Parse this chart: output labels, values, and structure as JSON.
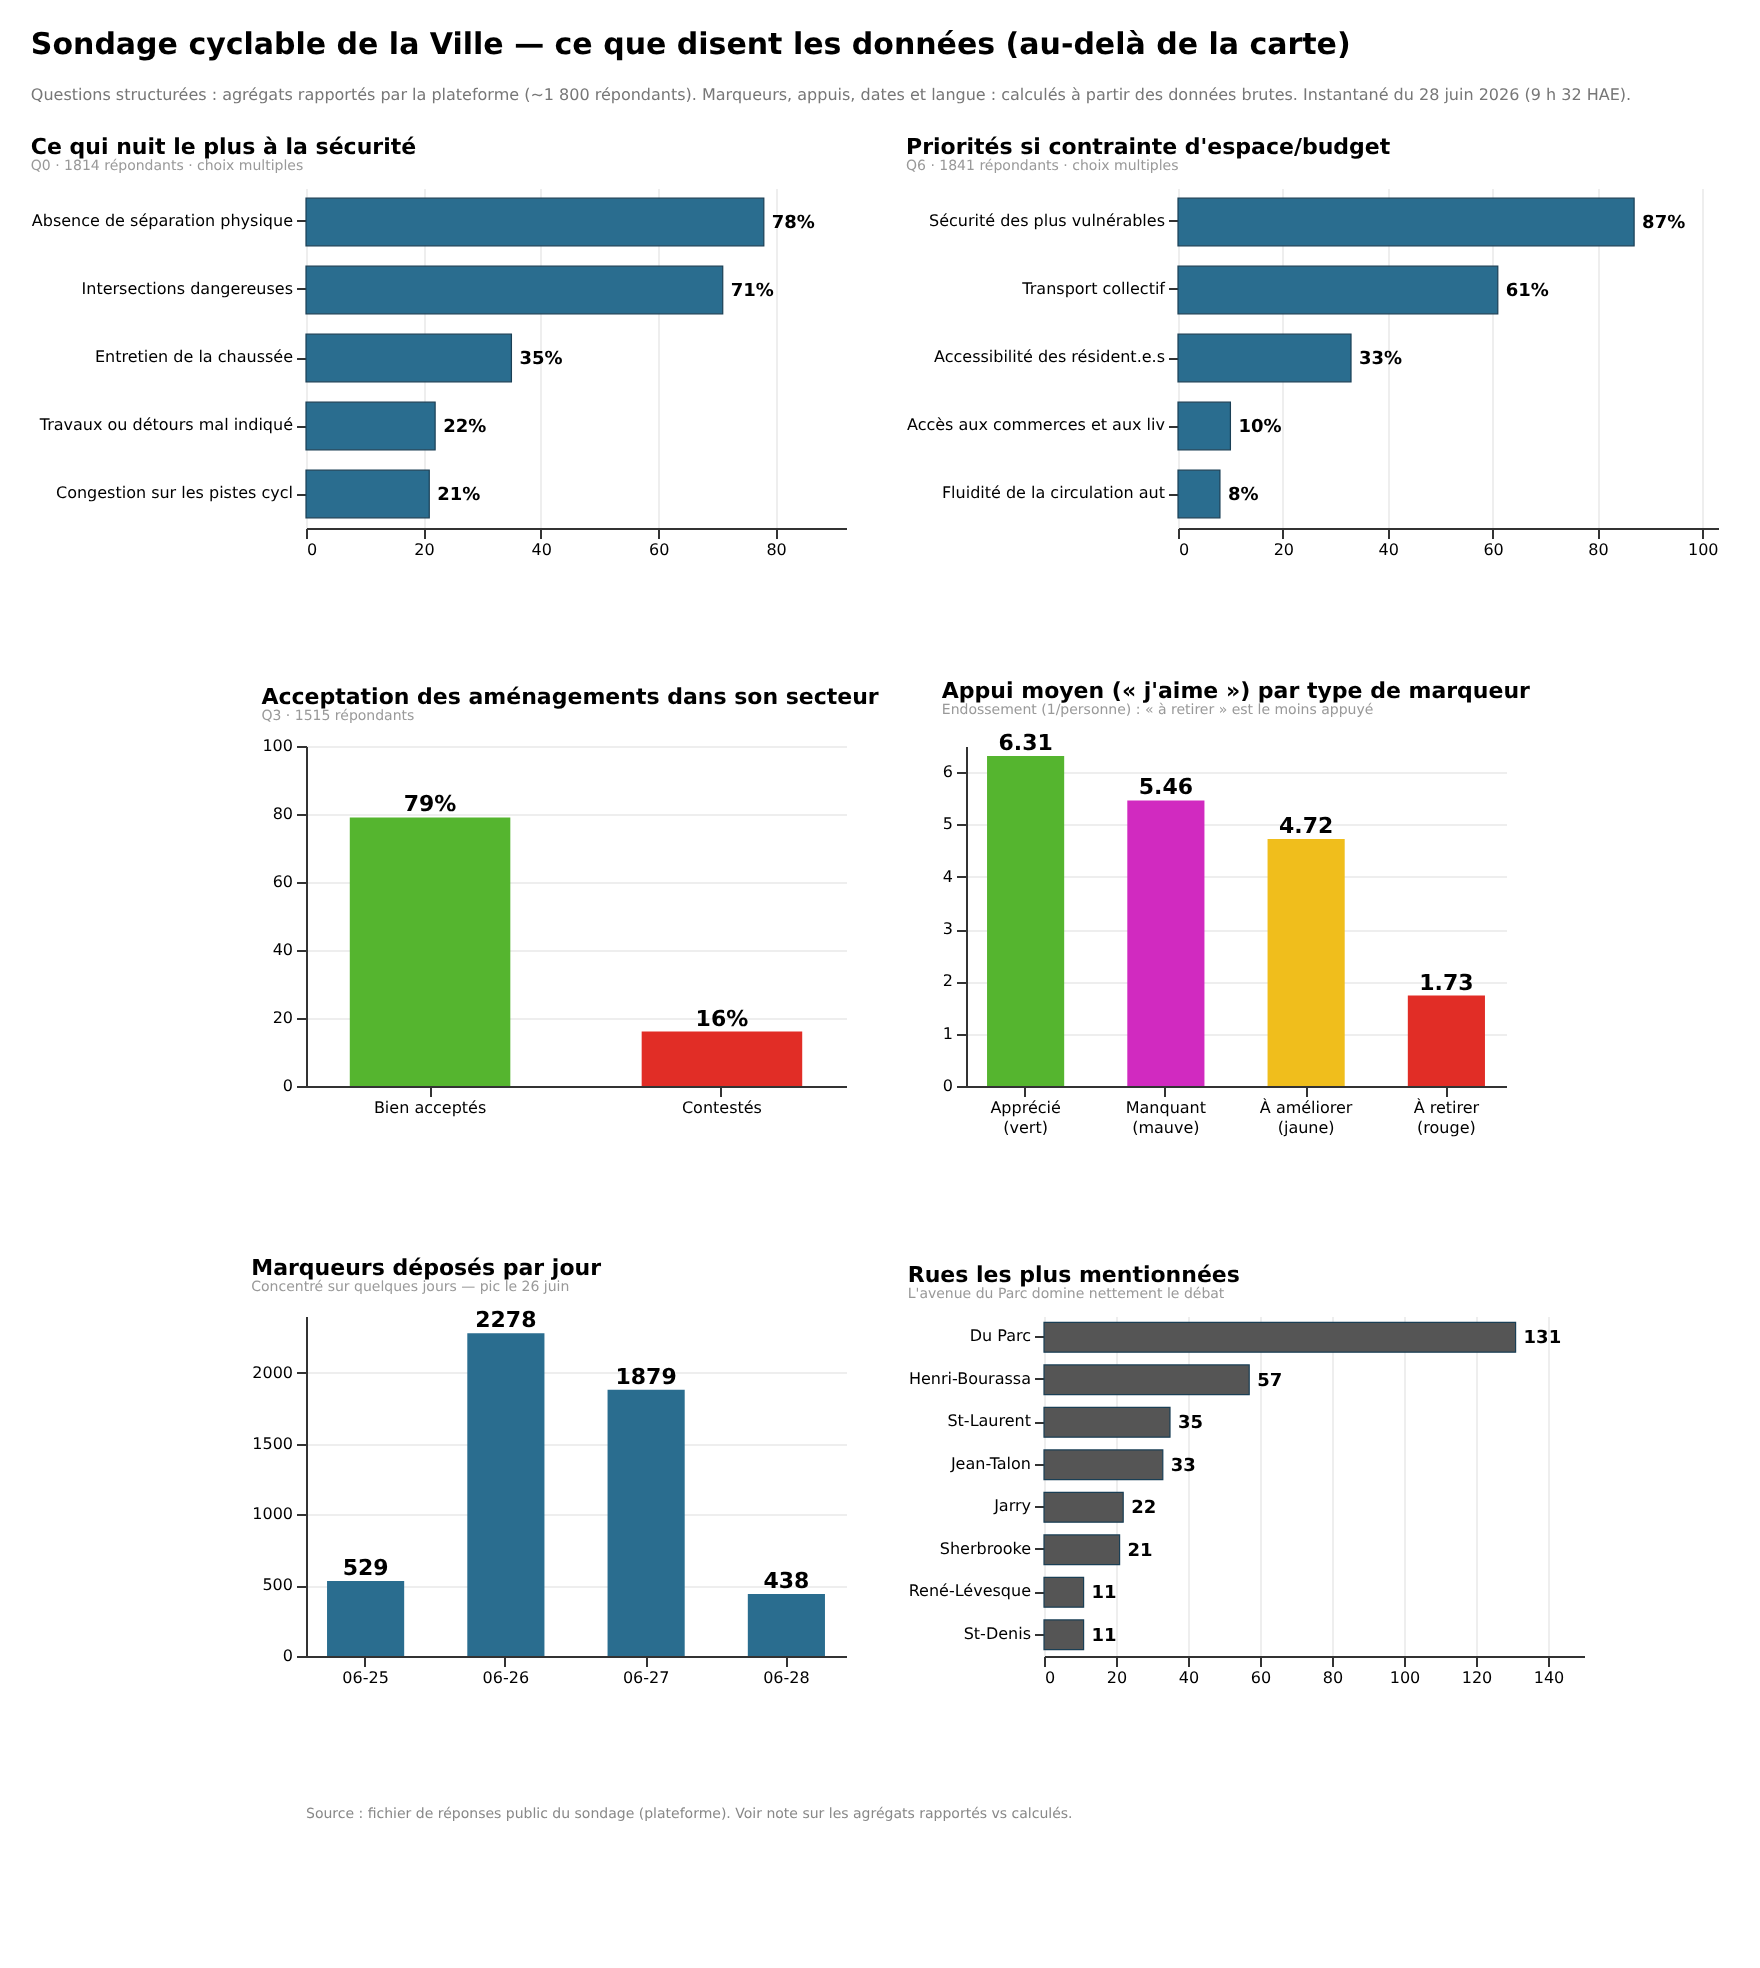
{
  "chart_data": [
    {
      "type": "bar",
      "orientation": "horizontal",
      "title": "Ce qui nuit le plus à la sécurité",
      "subtitle": "Q0 · 1814 répondants · choix multiples",
      "annotations": [
        "Sondage cyclable de la Ville — ce que disent les données (au-delà de la carte)",
        "Questions structurées : agrégats rapportés par la plateforme (~1 800 répondants). Marqueurs, appuis, dates et langue : calculés à partir des données brutes. Instantané du 28 juin 2026 (9 h 32 HAE)."
      ],
      "categories": [
        "Absence de séparation physique",
        "Intersections dangereuses",
        "Entretien de la chaussée",
        "Travaux ou détours mal indiqué",
        "Congestion sur les pistes cycl"
      ],
      "values": [
        78,
        71,
        35,
        22,
        21
      ],
      "value_labels": [
        "78%",
        "71%",
        "35%",
        "22%",
        "21%"
      ],
      "color": "#2a6d8f",
      "xlim": [
        0,
        92
      ],
      "xticks": [
        0,
        20,
        40,
        60,
        80
      ],
      "grid": "x"
    },
    {
      "type": "bar",
      "orientation": "horizontal",
      "title": "Priorités si contrainte d'espace/budget",
      "subtitle": "Q6 · 1841 répondants · choix multiples",
      "categories": [
        "Sécurité des plus vulnérables",
        "Transport collectif",
        "Accessibilité des résident.e.s",
        "Accès aux commerces et aux liv",
        "Fluidité de la circulation aut"
      ],
      "values": [
        87,
        61,
        33,
        10,
        8
      ],
      "value_labels": [
        "87%",
        "61%",
        "33%",
        "10%",
        "8%"
      ],
      "color": "#2a6d8f",
      "xlim": [
        0,
        103
      ],
      "xticks": [
        0,
        20,
        40,
        60,
        80,
        100
      ],
      "grid": "x"
    },
    {
      "type": "bar",
      "title": "Acceptation des aménagements dans son secteur",
      "subtitle": "Q3 · 1515 répondants",
      "categories": [
        "Bien acceptés",
        "Contestés"
      ],
      "values": [
        79,
        16
      ],
      "value_labels": [
        "79%",
        "16%"
      ],
      "colors": [
        "#55b52f",
        "#e12d26"
      ],
      "ylim": [
        0,
        100
      ],
      "yticks": [
        0,
        20,
        40,
        60,
        80,
        100
      ],
      "grid": "y"
    },
    {
      "type": "bar",
      "title": "Appui moyen (« j'aime ») par type de marqueur",
      "subtitle": "Endossement (1/personne) : « à retirer » est le moins appuyé",
      "categories": [
        "Apprécié\n(vert)",
        "Manquant\n(mauve)",
        "À améliorer\n(jaune)",
        "À retirer\n(rouge)"
      ],
      "values": [
        6.31,
        5.46,
        4.72,
        1.73
      ],
      "data_labels": true,
      "colors": [
        "#55b52f",
        "#d12ac0",
        "#f0be1c",
        "#e12d26"
      ],
      "ylim": [
        0,
        6.5
      ],
      "yticks": [
        0,
        1,
        2,
        3,
        4,
        5,
        6
      ],
      "grid": "y"
    },
    {
      "type": "bar",
      "title": "Marqueurs déposés par jour",
      "subtitle": "Concentré sur quelques jours — pic le 26 juin",
      "categories": [
        "06-25",
        "06-26",
        "06-27",
        "06-28"
      ],
      "values": [
        529,
        2278,
        1879,
        438
      ],
      "data_labels": true,
      "color": "#2a6d8f",
      "ylim": [
        0,
        2400
      ],
      "yticks": [
        0,
        500,
        1000,
        1500,
        2000
      ],
      "grid": "y"
    },
    {
      "type": "bar",
      "orientation": "horizontal",
      "title": "Rues les plus mentionnées",
      "subtitle": "L'avenue du Parc domine nettement le débat",
      "annotations": [
        "Source : fichier de réponses public du sondage (plateforme). Voir note sur les agrégats rapportés vs calculés."
      ],
      "categories": [
        "Du Parc",
        "Henri-Bourassa",
        "St-Laurent",
        "Jean-Talon",
        "Jarry",
        "Sherbrooke",
        "René-Lévesque",
        "St-Denis"
      ],
      "values": [
        131,
        57,
        35,
        33,
        22,
        21,
        11,
        11
      ],
      "data_labels": true,
      "color": "#555555",
      "xlim": [
        0,
        150
      ],
      "xticks": [
        0,
        20,
        40,
        60,
        80,
        100,
        120,
        140
      ],
      "grid": "x"
    }
  ]
}
